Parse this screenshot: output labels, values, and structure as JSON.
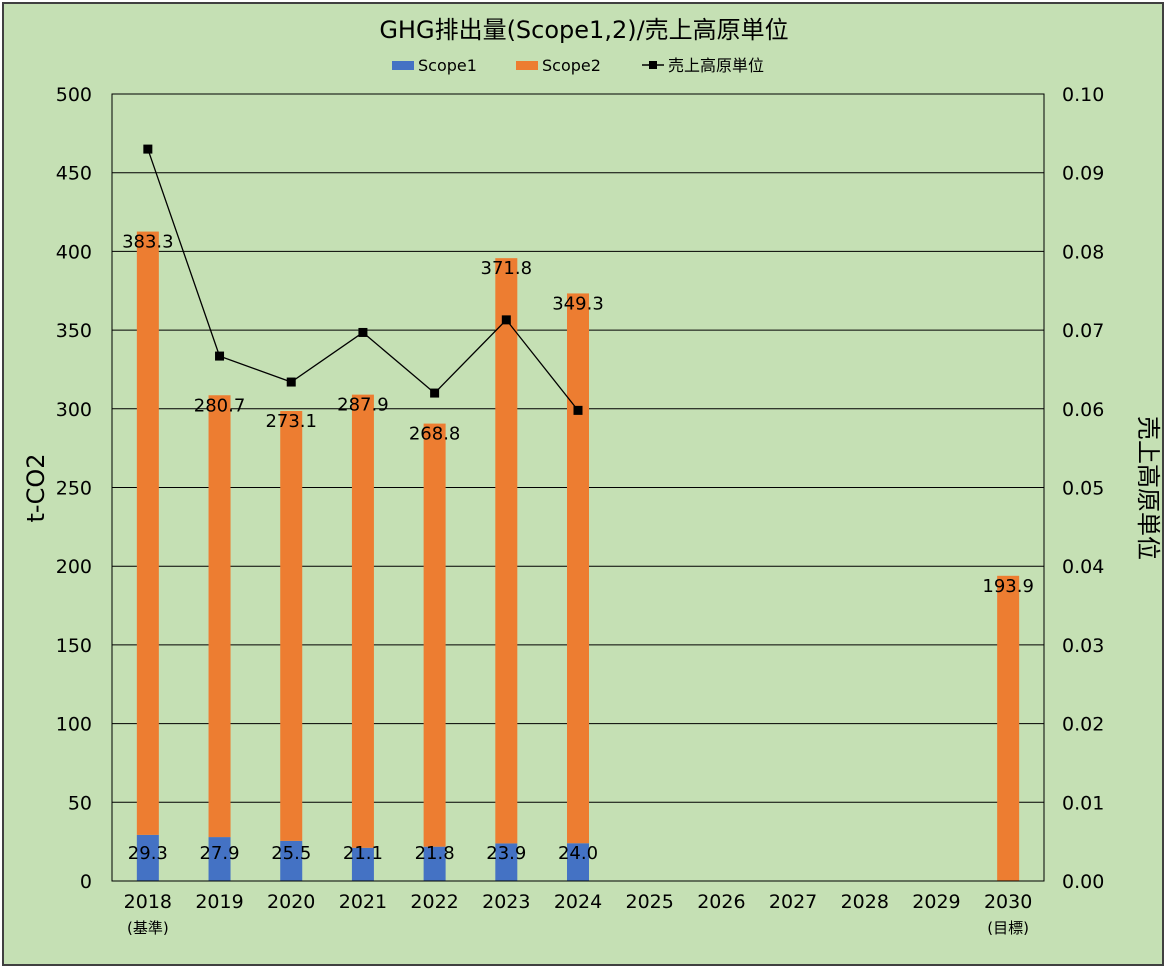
{
  "chart_data": {
    "type": "bar",
    "stacked": true,
    "title": "GHG排出量(Scope1,2)/売上高原単位",
    "ylabel": "t-CO2",
    "y2label": "売上高原単位",
    "ylim": [
      0,
      500
    ],
    "y2lim": [
      0,
      0.1
    ],
    "yticks": [
      "0",
      "50",
      "100",
      "150",
      "200",
      "250",
      "300",
      "350",
      "400",
      "450",
      "500"
    ],
    "y2ticks": [
      "0.00",
      "0.01",
      "0.02",
      "0.03",
      "0.04",
      "0.05",
      "0.06",
      "0.07",
      "0.08",
      "0.09",
      "0.10"
    ],
    "categories": [
      "2018",
      "2019",
      "2020",
      "2021",
      "2022",
      "2023",
      "2024",
      "2025",
      "2026",
      "2027",
      "2028",
      "2029",
      "2030"
    ],
    "category_sublabels": [
      "(基準)",
      "",
      "",
      "",
      "",
      "",
      "",
      "",
      "",
      "",
      "",
      "",
      "(目標)"
    ],
    "grid": "horizontal",
    "legend": "top",
    "series": [
      {
        "name": "Scope1",
        "kind": "bar",
        "axis": "left",
        "color": "#4472c4",
        "values": [
          29.3,
          27.9,
          25.5,
          21.1,
          21.8,
          23.9,
          24.0,
          null,
          null,
          null,
          null,
          null,
          null
        ],
        "labels": [
          "29.3",
          "27.9",
          "25.5",
          "21.1",
          "21.8",
          "23.9",
          "24.0",
          "",
          "",
          "",
          "",
          "",
          ""
        ]
      },
      {
        "name": "Scope2",
        "kind": "bar",
        "axis": "left",
        "color": "#ed7d31",
        "values": [
          383.3,
          280.7,
          273.1,
          287.9,
          268.8,
          371.8,
          349.3,
          null,
          null,
          null,
          null,
          null,
          193.9
        ],
        "labels": [
          "383.3",
          "280.7",
          "273.1",
          "287.9",
          "268.8",
          "371.8",
          "349.3",
          "",
          "",
          "",
          "",
          "",
          "193.9"
        ]
      },
      {
        "name": "売上高原単位",
        "kind": "line",
        "axis": "right",
        "color": "#000000",
        "values": [
          0.093,
          0.0667,
          0.0634,
          0.0697,
          0.062,
          0.0713,
          0.0598,
          null,
          null,
          null,
          null,
          null,
          null
        ]
      }
    ]
  }
}
